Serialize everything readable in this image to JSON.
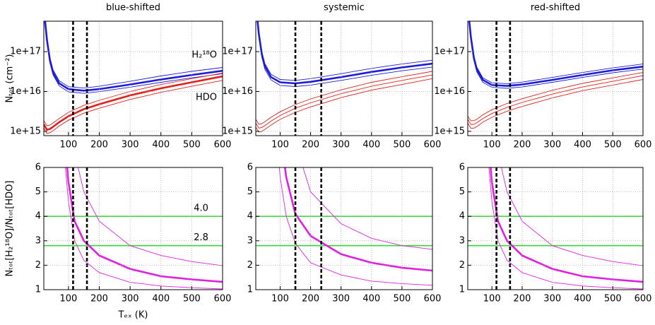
{
  "chart_data": [
    {
      "type": "line",
      "title": "blue-shifted",
      "ylabel": "Nₜₒₜ (cm⁻²)",
      "log_y": true,
      "grid": true,
      "xlim": [
        20,
        600
      ],
      "xticks": [
        100,
        200,
        300,
        400,
        500,
        600
      ],
      "ylim": [
        780000000000000.0,
        5.8e+17
      ],
      "yticks": [
        {
          "value": 1000000000000000.0,
          "label": "1e+15"
        },
        {
          "value": 1e+16,
          "label": "1e+16"
        },
        {
          "value": 1e+17,
          "label": "1e+17"
        }
      ],
      "vlines": [
        115,
        160
      ],
      "x": [
        20,
        30,
        40,
        50,
        70,
        100,
        150,
        200,
        300,
        400,
        500,
        600
      ],
      "series": [
        {
          "name": "H₂¹⁸O",
          "color": "#1c1cd8",
          "values": [
            1.2e+18,
            2e+17,
            6e+16,
            3e+16,
            1.6e+16,
            1.15e+16,
            1.05e+16,
            1.15e+16,
            1.5e+16,
            2e+16,
            2.6e+16,
            3.3e+16
          ]
        },
        {
          "color": "#1c1cd8",
          "values": [
            1.4e+18,
            2.3e+17,
            7e+16,
            3.5e+16,
            1.85e+16,
            1.32e+16,
            1.22e+16,
            1.35e+16,
            1.8e+16,
            2.45e+16,
            3.2e+16,
            4e+16
          ]
        },
        {
          "color": "#1c1cd8",
          "values": [
            1e+18,
            1.75e+17,
            5.2e+16,
            2.6e+16,
            1.38e+16,
            9800000000000000.0,
            9000000000000000.0,
            9900000000000000.0,
            1.28e+16,
            1.7e+16,
            2.2e+16,
            2.8e+16
          ]
        },
        {
          "name": "HDO",
          "color": "#e0201b",
          "values": [
            1500000000000000.0,
            1100000000000000.0,
            1150000000000000.0,
            1300000000000000.0,
            1700000000000000.0,
            2400000000000000.0,
            3600000000000000.0,
            4800000000000000.0,
            8000000000000000.0,
            1.2e+16,
            1.7e+16,
            2.4e+16
          ]
        },
        {
          "color": "#e0201b",
          "values": [
            1850000000000000.0,
            1380000000000000.0,
            1440000000000000.0,
            1620000000000000.0,
            2100000000000000.0,
            3000000000000000.0,
            4500000000000000.0,
            6000000000000000.0,
            1e+16,
            1.5e+16,
            2.1e+16,
            2.9e+16
          ]
        },
        {
          "color": "#e0201b",
          "values": [
            1200000000000000.0,
            880000000000000.0,
            920000000000000.0,
            1040000000000000.0,
            1360000000000000.0,
            1900000000000000.0,
            2850000000000000.0,
            3800000000000000.0,
            6300000000000000.0,
            9500000000000000.0,
            1.35e+16,
            1.9e+16
          ]
        }
      ]
    },
    {
      "type": "line",
      "title": "systemic",
      "log_y": true,
      "grid": true,
      "xlim": [
        20,
        600
      ],
      "xticks": [
        100,
        200,
        300,
        400,
        500,
        600
      ],
      "ylim": [
        780000000000000.0,
        5.8e+17
      ],
      "yticks": [
        {
          "value": 1000000000000000.0,
          "label": "1e+15"
        },
        {
          "value": 1e+16,
          "label": "1e+16"
        },
        {
          "value": 1e+17,
          "label": "1e+17"
        }
      ],
      "vlines": [
        150,
        235
      ],
      "x": [
        20,
        30,
        40,
        50,
        70,
        100,
        150,
        200,
        300,
        400,
        500,
        600
      ],
      "series": [
        {
          "color": "#1c1cd8",
          "values": [
            1.6e+18,
            2.8e+17,
            8.5e+16,
            4.3e+16,
            2.3e+16,
            1.7e+16,
            1.6e+16,
            1.75e+16,
            2.3e+16,
            3.1e+16,
            4e+16,
            5e+16
          ]
        },
        {
          "color": "#1c1cd8",
          "values": [
            1.8e+18,
            3.2e+17,
            1e+17,
            5e+16,
            2.7e+16,
            2e+16,
            1.9e+16,
            2.1e+16,
            2.8e+16,
            3.8e+16,
            4.9e+16,
            6.1e+16
          ]
        },
        {
          "color": "#1c1cd8",
          "values": [
            1.4e+18,
            2.4e+17,
            7.2e+16,
            3.6e+16,
            1.95e+16,
            1.42e+16,
            1.33e+16,
            1.45e+16,
            1.9e+16,
            2.55e+16,
            3.3e+16,
            4.1e+16
          ]
        },
        {
          "color": "#e0201b",
          "values": [
            1600000000000000.0,
            1200000000000000.0,
            1250000000000000.0,
            1400000000000000.0,
            1800000000000000.0,
            2500000000000000.0,
            3800000000000000.0,
            5200000000000000.0,
            8800000000000000.0,
            1.35e+16,
            1.9e+16,
            2.6e+16
          ]
        },
        {
          "color": "#e0201b",
          "values": [
            2000000000000000.0,
            1500000000000000.0,
            1560000000000000.0,
            1750000000000000.0,
            2250000000000000.0,
            3100000000000000.0,
            4700000000000000.0,
            6500000000000000.0,
            1.1e+16,
            1.7e+16,
            2.35e+16,
            3.2e+16
          ]
        },
        {
          "color": "#e0201b",
          "values": [
            1280000000000000.0,
            960000000000000.0,
            1000000000000000.0,
            1120000000000000.0,
            1440000000000000.0,
            2000000000000000.0,
            3000000000000000.0,
            4100000000000000.0,
            7000000000000000.0,
            1.08e+16,
            1.5e+16,
            2.1e+16
          ]
        }
      ]
    },
    {
      "type": "line",
      "title": "red-shifted",
      "log_y": true,
      "grid": true,
      "xlim": [
        20,
        600
      ],
      "xticks": [
        100,
        200,
        300,
        400,
        500,
        600
      ],
      "ylim": [
        780000000000000.0,
        5.8e+17
      ],
      "yticks": [
        {
          "value": 1000000000000000.0,
          "label": "1e+15"
        },
        {
          "value": 1e+16,
          "label": "1e+16"
        },
        {
          "value": 1e+17,
          "label": "1e+17"
        }
      ],
      "vlines": [
        115,
        160
      ],
      "x": [
        20,
        30,
        40,
        50,
        70,
        100,
        150,
        200,
        300,
        400,
        500,
        600
      ],
      "series": [
        {
          "color": "#1c1cd8",
          "values": [
            1.4e+18,
            2.4e+17,
            7e+16,
            3.6e+16,
            1.95e+16,
            1.45e+16,
            1.38e+16,
            1.5e+16,
            1.95e+16,
            2.6e+16,
            3.4e+16,
            4.2e+16
          ]
        },
        {
          "color": "#1c1cd8",
          "values": [
            1.6e+18,
            2.7e+17,
            8e+16,
            4.1e+16,
            2.2e+16,
            1.65e+16,
            1.57e+16,
            1.72e+16,
            2.25e+16,
            3e+16,
            3.9e+16,
            4.9e+16
          ]
        },
        {
          "color": "#1c1cd8",
          "values": [
            1.2e+18,
            2.1e+17,
            6.1e+16,
            3.1e+16,
            1.7e+16,
            1.27e+16,
            1.2e+16,
            1.3e+16,
            1.7e+16,
            2.25e+16,
            2.95e+16,
            3.65e+16
          ]
        },
        {
          "color": "#e0201b",
          "values": [
            2000000000000000.0,
            1500000000000000.0,
            1500000000000000.0,
            1650000000000000.0,
            2100000000000000.0,
            2800000000000000.0,
            4000000000000000.0,
            5300000000000000.0,
            8600000000000000.0,
            1.3e+16,
            1.8e+16,
            2.5e+16
          ]
        },
        {
          "color": "#e0201b",
          "values": [
            2400000000000000.0,
            1850000000000000.0,
            1850000000000000.0,
            2000000000000000.0,
            2600000000000000.0,
            3500000000000000.0,
            5000000000000000.0,
            6600000000000000.0,
            1.07e+16,
            1.6e+16,
            2.2e+16,
            3e+16
          ]
        },
        {
          "color": "#e0201b",
          "values": [
            1600000000000000.0,
            1200000000000000.0,
            1200000000000000.0,
            1320000000000000.0,
            1700000000000000.0,
            2250000000000000.0,
            3200000000000000.0,
            4200000000000000.0,
            6900000000000000.0,
            1.05e+16,
            1.45e+16,
            2e+16
          ]
        }
      ]
    },
    {
      "type": "line",
      "ylabel": "Nₜₒₜ[H₂¹⁸O]/Nₜₒₜ[HDO]",
      "xlabel": "Tₑₓ (K)",
      "grid": true,
      "xlim": [
        20,
        600
      ],
      "xticks": [
        100,
        200,
        300,
        400,
        500,
        600
      ],
      "ylim": [
        1,
        6
      ],
      "yticks": [
        1,
        2,
        3,
        4,
        5,
        6
      ],
      "vlines": [
        115,
        160
      ],
      "hlines": {
        "color": "#33dd33",
        "values": [
          4,
          2.8
        ],
        "value_labels": [
          "4.0",
          "2.8"
        ]
      },
      "x": [
        90,
        100,
        120,
        150,
        200,
        300,
        400,
        500,
        600
      ],
      "series": [
        {
          "color": "#e020e0",
          "values": [
            6.8,
            5.4,
            3.8,
            3.0,
            2.4,
            1.85,
            1.55,
            1.42,
            1.32
          ]
        },
        {
          "color": "#e020e0",
          "values": [
            null,
            null,
            6.6,
            5.0,
            3.8,
            2.8,
            2.4,
            2.15,
            1.98
          ]
        },
        {
          "color": "#e020e0",
          "values": [
            6.0,
            4.6,
            3.0,
            2.2,
            1.7,
            1.3,
            1.15,
            1.08,
            1.03
          ]
        }
      ]
    },
    {
      "type": "line",
      "grid": true,
      "xlim": [
        20,
        600
      ],
      "xticks": [
        100,
        200,
        300,
        400,
        500,
        600
      ],
      "ylim": [
        1,
        6
      ],
      "yticks": [
        1,
        2,
        3,
        4,
        5,
        6
      ],
      "vlines": [
        150,
        235
      ],
      "hlines": {
        "color": "#33dd33",
        "values": [
          4,
          2.8
        ]
      },
      "x": [
        90,
        100,
        120,
        150,
        200,
        300,
        400,
        500,
        600
      ],
      "series": [
        {
          "color": "#e020e0",
          "values": [
            null,
            7.5,
            5.6,
            4.1,
            3.2,
            2.45,
            2.1,
            1.9,
            1.78
          ]
        },
        {
          "color": "#e020e0",
          "values": [
            null,
            null,
            null,
            7.0,
            5.0,
            3.7,
            3.1,
            2.8,
            2.65
          ]
        },
        {
          "color": "#e020e0",
          "values": [
            7.2,
            5.6,
            4.0,
            2.9,
            2.1,
            1.6,
            1.35,
            1.25,
            1.18
          ]
        }
      ]
    },
    {
      "type": "line",
      "grid": true,
      "xlim": [
        20,
        600
      ],
      "xticks": [
        100,
        200,
        300,
        400,
        500,
        600
      ],
      "ylim": [
        1,
        6
      ],
      "yticks": [
        1,
        2,
        3,
        4,
        5,
        6
      ],
      "vlines": [
        115,
        160
      ],
      "hlines": {
        "color": "#33dd33",
        "values": [
          4,
          2.8
        ]
      },
      "x": [
        90,
        100,
        120,
        150,
        200,
        300,
        400,
        500,
        600
      ],
      "series": [
        {
          "color": "#e020e0",
          "values": [
            6.8,
            5.4,
            3.8,
            3.0,
            2.4,
            1.85,
            1.55,
            1.42,
            1.32
          ]
        },
        {
          "color": "#e020e0",
          "values": [
            null,
            null,
            6.6,
            5.0,
            3.8,
            2.8,
            2.4,
            2.15,
            1.98
          ]
        },
        {
          "color": "#e020e0",
          "values": [
            6.0,
            4.6,
            3.0,
            2.2,
            1.7,
            1.3,
            1.15,
            1.08,
            1.03
          ]
        }
      ]
    }
  ]
}
